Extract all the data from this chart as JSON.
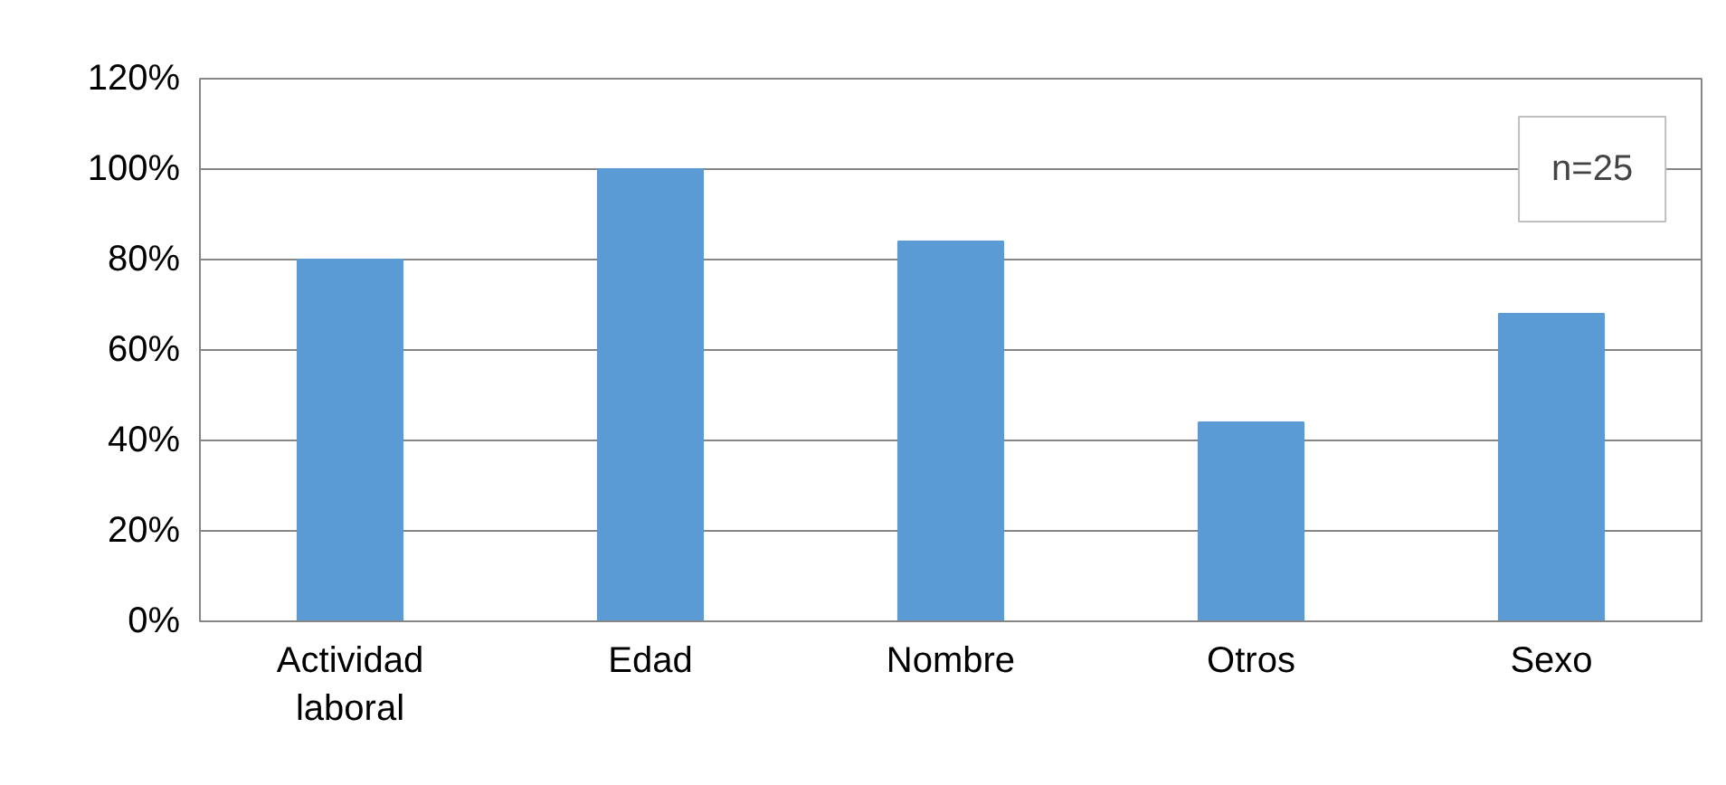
{
  "chart_data": {
    "type": "bar",
    "categories": [
      "Actividad laboral",
      "Edad",
      "Nombre",
      "Otros",
      "Sexo"
    ],
    "values": [
      80,
      100,
      84,
      44,
      68
    ],
    "color": "#5b9bd5",
    "ylim": [
      0,
      120
    ],
    "yticks": [
      {
        "value": 0,
        "label": "0%"
      },
      {
        "value": 20,
        "label": "20%"
      },
      {
        "value": 40,
        "label": "40%"
      },
      {
        "value": 60,
        "label": "60%"
      },
      {
        "value": 80,
        "label": "80%"
      },
      {
        "value": 100,
        "label": "100%"
      },
      {
        "value": 120,
        "label": "120%"
      }
    ],
    "grid": "y",
    "annotations": [
      "n=25"
    ]
  }
}
